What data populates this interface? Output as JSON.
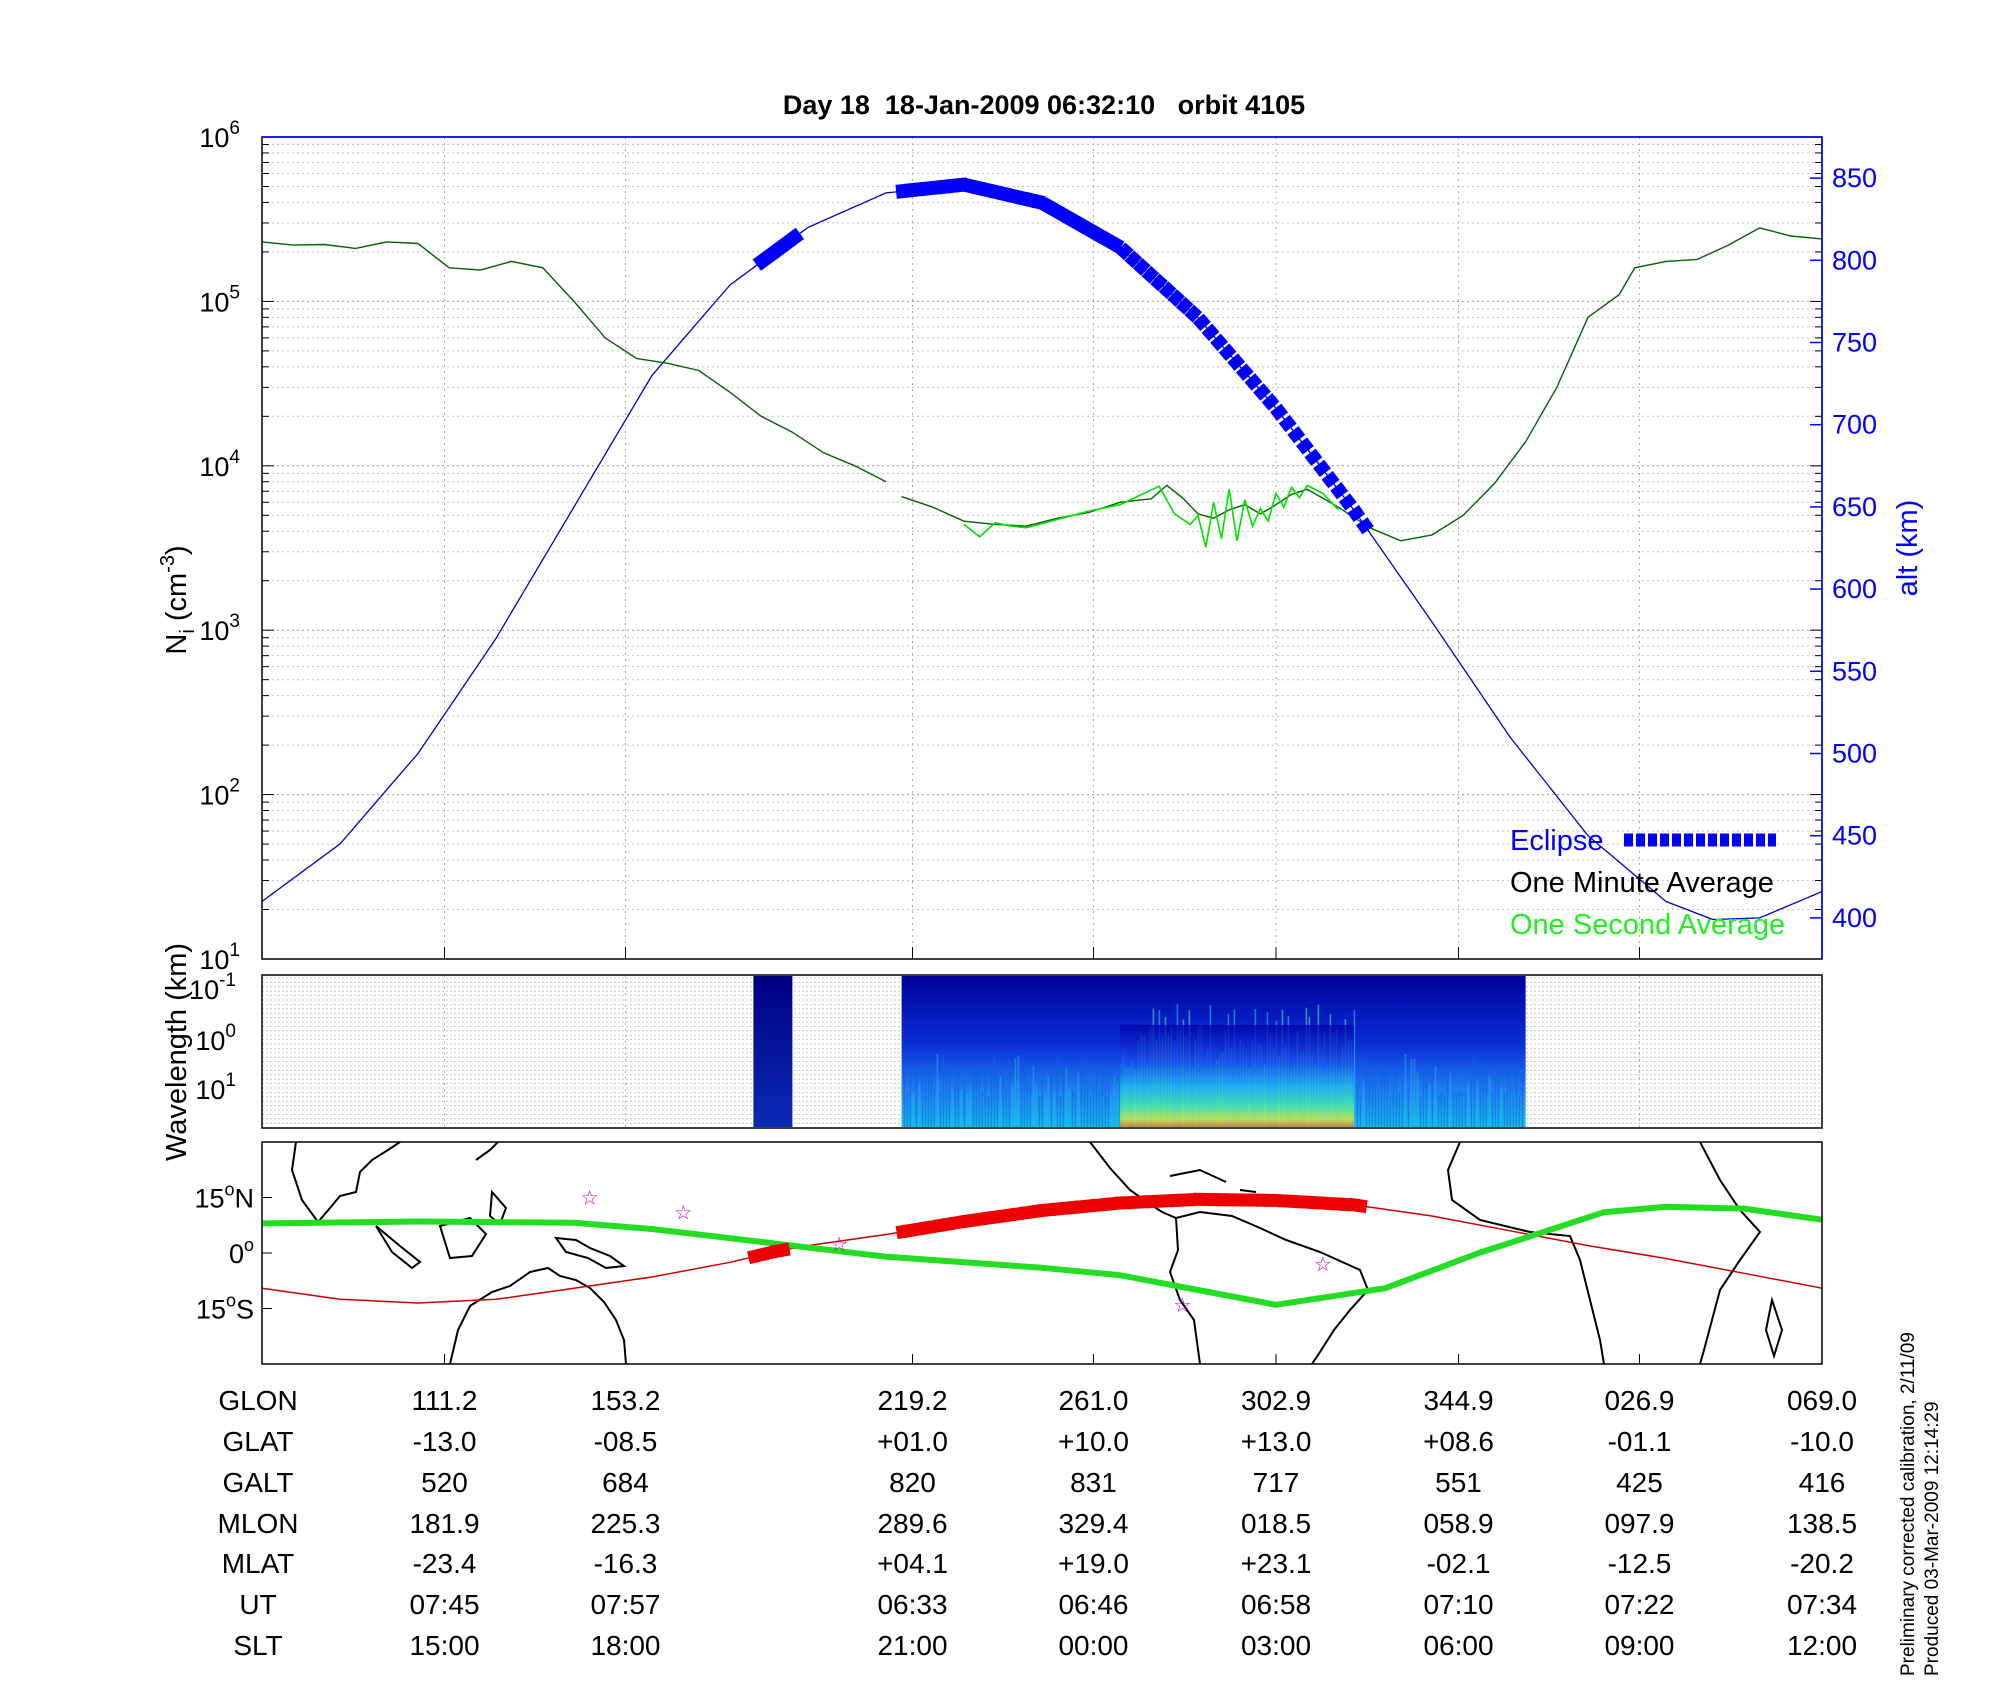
{
  "chart_data": [
    {
      "type": "line",
      "title": "Day 18  18-Jan-2009 06:32:10   orbit 4105",
      "ylabel_main": "N",
      "ylabel_sub": "i",
      "ylabel_units_a": " (cm",
      "ylabel_units_sup": "-3",
      "ylabel_units_b": ")",
      "ylabel_right": "alt (km)",
      "y_scale": "log",
      "ylim": [
        10,
        1000000
      ],
      "y_ticks": [
        {
          "base": "10",
          "exp": "1",
          "value": 10
        },
        {
          "base": "10",
          "exp": "2",
          "value": 100
        },
        {
          "base": "10",
          "exp": "3",
          "value": 1000
        },
        {
          "base": "10",
          "exp": "4",
          "value": 10000
        },
        {
          "base": "10",
          "exp": "5",
          "value": 100000
        },
        {
          "base": "10",
          "exp": "6",
          "value": 1000000
        }
      ],
      "ylim_right": [
        375,
        875
      ],
      "y_right_ticks": [
        "400",
        "450",
        "500",
        "550",
        "600",
        "650",
        "700",
        "750",
        "800",
        "850"
      ],
      "x_domain": [
        0,
        100
      ],
      "x_gridlines": [
        11.7,
        23.3,
        41.7,
        53.3,
        65,
        76.7,
        88.3
      ],
      "series": [
        {
          "name": "One Minute Average",
          "color": "#006400",
          "segments": [
            [
              [
                0,
                230000
              ],
              [
                2,
                220000
              ],
              [
                4,
                222000
              ],
              [
                6,
                210000
              ],
              [
                8,
                230000
              ],
              [
                10,
                225000
              ],
              [
                12,
                160000
              ],
              [
                14,
                155000
              ],
              [
                16,
                175000
              ],
              [
                18,
                160000
              ],
              [
                20,
                100000
              ],
              [
                22,
                60000
              ],
              [
                24,
                45000
              ],
              [
                26,
                42000
              ],
              [
                28,
                38000
              ],
              [
                30,
                28000
              ],
              [
                32,
                20000
              ],
              [
                34,
                16000
              ],
              [
                36,
                12000
              ],
              [
                38,
                10000
              ],
              [
                40,
                8000
              ]
            ],
            [
              [
                40,
                null
              ]
            ],
            [
              [
                41,
                6500
              ],
              [
                43,
                5600
              ],
              [
                45,
                4600
              ],
              [
                47,
                4400
              ],
              [
                49,
                4300
              ],
              [
                51,
                4800
              ],
              [
                53,
                5200
              ],
              [
                55,
                6000
              ],
              [
                57,
                6300
              ],
              [
                58,
                7600
              ],
              [
                59,
                6400
              ],
              [
                60,
                5100
              ],
              [
                61,
                4800
              ],
              [
                62,
                5400
              ],
              [
                63,
                5800
              ],
              [
                64,
                5100
              ],
              [
                65,
                5800
              ],
              [
                66,
                6700
              ],
              [
                67,
                7200
              ],
              [
                69,
                5600
              ],
              [
                71,
                4200
              ],
              [
                73,
                3500
              ],
              [
                75,
                3800
              ],
              [
                77,
                5000
              ],
              [
                79,
                7800
              ],
              [
                81,
                14000
              ],
              [
                83,
                30000
              ],
              [
                85,
                80000
              ],
              [
                87,
                110000
              ],
              [
                88,
                160000
              ],
              [
                90,
                175000
              ],
              [
                92,
                180000
              ],
              [
                94,
                220000
              ],
              [
                96,
                280000
              ],
              [
                98,
                250000
              ],
              [
                100,
                240000
              ]
            ]
          ]
        },
        {
          "name": "One Second Average",
          "color": "#00e000",
          "segments": [
            [
              [
                45,
                4400
              ],
              [
                46,
                3700
              ],
              [
                47,
                4500
              ],
              [
                48,
                4300
              ],
              [
                49,
                4200
              ],
              [
                53,
                5300
              ],
              [
                55,
                5800
              ],
              [
                57.5,
                7500
              ],
              [
                58.5,
                5100
              ],
              [
                59.5,
                4400
              ],
              [
                60,
                5000
              ],
              [
                60.5,
                3200
              ],
              [
                61,
                6000
              ],
              [
                61.5,
                3600
              ],
              [
                62,
                7200
              ],
              [
                62.5,
                3500
              ],
              [
                63,
                6200
              ],
              [
                63.5,
                4300
              ],
              [
                64,
                5500
              ],
              [
                64.5,
                4600
              ],
              [
                65,
                6800
              ],
              [
                65.5,
                5600
              ],
              [
                66,
                7400
              ],
              [
                66.5,
                6400
              ],
              [
                67,
                7600
              ],
              [
                68,
                6800
              ],
              [
                69,
                5400
              ]
            ]
          ]
        },
        {
          "name": "Altitude",
          "color": "#0000cc",
          "axis": "right",
          "points": [
            [
              0,
              410
            ],
            [
              5,
              445
            ],
            [
              10,
              500
            ],
            [
              15,
              570
            ],
            [
              20,
              650
            ],
            [
              25,
              730
            ],
            [
              30,
              785
            ],
            [
              35,
              820
            ],
            [
              40,
              841
            ],
            [
              45,
              846
            ],
            [
              50,
              835
            ],
            [
              55,
              808
            ],
            [
              60,
              765
            ],
            [
              65,
              710
            ],
            [
              70,
              648
            ],
            [
              75,
              580
            ],
            [
              80,
              510
            ],
            [
              85,
              450
            ],
            [
              90,
              410
            ],
            [
              93,
              399
            ],
            [
              96,
              400
            ],
            [
              100,
              416
            ]
          ]
        },
        {
          "name": "Eclipse",
          "color": "#0000ff",
          "axis": "right",
          "ranges": [
            [
              32,
              34.5
            ],
            [
              41,
              71
            ]
          ]
        }
      ],
      "legend": [
        "Eclipse",
        "One Minute Average",
        "One Second Average"
      ],
      "legend_placement": "bottom-right"
    },
    {
      "type": "heatmap",
      "ylabel": "Wavelength (km)",
      "y_ticks": [
        {
          "base": "10",
          "exp": "-1"
        },
        {
          "base": "10",
          "exp": "0"
        },
        {
          "base": "10",
          "exp": "1"
        }
      ],
      "data_ranges": [
        [
          31.5,
          34
        ],
        [
          41,
          81
        ]
      ],
      "colormap": "jet",
      "peak_region": [
        55,
        70
      ]
    },
    {
      "type": "map",
      "lat_ticks": [
        {
          "deg": "15",
          "hemi": "N"
        },
        {
          "deg": "0",
          "hemi": ""
        },
        {
          "deg": "15",
          "hemi": "S"
        }
      ],
      "lat_range": [
        -30,
        30
      ],
      "ground_track_color": "#cc0000",
      "magnetic_equator_color": "#22dd22",
      "ground_track": [
        [
          0,
          -9.5
        ],
        [
          5,
          -12.5
        ],
        [
          10,
          -13.5
        ],
        [
          15,
          -12.5
        ],
        [
          20,
          -9.5
        ],
        [
          25,
          -6.5
        ],
        [
          30,
          -2.5
        ],
        [
          33,
          0.5
        ],
        [
          35,
          2
        ],
        [
          40,
          5
        ],
        [
          45,
          8.5
        ],
        [
          50,
          11.5
        ],
        [
          55,
          13.5
        ],
        [
          60,
          14.5
        ],
        [
          65,
          14.2
        ],
        [
          70,
          13
        ],
        [
          75,
          10
        ],
        [
          80,
          6
        ],
        [
          85,
          2
        ],
        [
          90,
          -1.5
        ],
        [
          95,
          -5.5
        ],
        [
          100,
          -9.5
        ]
      ],
      "eclipse_ranges": [
        [
          31.5,
          33.5
        ],
        [
          41,
          70.5
        ]
      ],
      "magnetic_equator": [
        [
          0,
          8
        ],
        [
          10,
          8.5
        ],
        [
          20,
          8.2
        ],
        [
          25,
          6.5
        ],
        [
          30,
          4
        ],
        [
          35,
          1.5
        ],
        [
          40,
          -1
        ],
        [
          45,
          -2.5
        ],
        [
          50,
          -4
        ],
        [
          55,
          -6
        ],
        [
          60,
          -10
        ],
        [
          65,
          -14
        ],
        [
          72,
          -9.5
        ],
        [
          78,
          0
        ],
        [
          82,
          5.5
        ],
        [
          86,
          11
        ],
        [
          90,
          12.5
        ],
        [
          95,
          12
        ],
        [
          100,
          9
        ]
      ],
      "stars": [
        [
          21,
          15
        ],
        [
          27,
          11
        ],
        [
          37,
          2.5
        ],
        [
          59,
          -14
        ],
        [
          68,
          -3
        ]
      ]
    }
  ],
  "table": {
    "row_labels": [
      "GLON",
      "GLAT",
      "GALT",
      "MLON",
      "MLAT",
      "UT",
      "SLT"
    ],
    "columns": [
      {
        "x": 11.7,
        "values": [
          "111.2",
          "-13.0",
          "520",
          "181.9",
          "-23.4",
          "07:45",
          "15:00"
        ]
      },
      {
        "x": 23.3,
        "values": [
          "153.2",
          "-08.5",
          "684",
          "225.3",
          "-16.3",
          "07:57",
          "18:00"
        ]
      },
      {
        "x": 41.7,
        "values": [
          "219.2",
          "+01.0",
          "820",
          "289.6",
          "+04.1",
          "06:33",
          "21:00"
        ]
      },
      {
        "x": 53.3,
        "values": [
          "261.0",
          "+10.0",
          "831",
          "329.4",
          "+19.0",
          "06:46",
          "00:00"
        ]
      },
      {
        "x": 65,
        "values": [
          "302.9",
          "+13.0",
          "717",
          "018.5",
          "+23.1",
          "06:58",
          "03:00"
        ]
      },
      {
        "x": 76.7,
        "values": [
          "344.9",
          "+08.6",
          "551",
          "058.9",
          "-02.1",
          "07:10",
          "06:00"
        ]
      },
      {
        "x": 88.3,
        "values": [
          "026.9",
          "-01.1",
          "425",
          "097.9",
          "-12.5",
          "07:22",
          "09:00"
        ]
      },
      {
        "x": 100,
        "values": [
          "069.0",
          "-10.0",
          "416",
          "138.5",
          "-20.2",
          "07:34",
          "12:00"
        ]
      }
    ]
  },
  "notes": {
    "line1": "Preliminary corrected calibration, 2/11/09",
    "line2": "Produced 03-Mar-2009 12:14:29"
  }
}
